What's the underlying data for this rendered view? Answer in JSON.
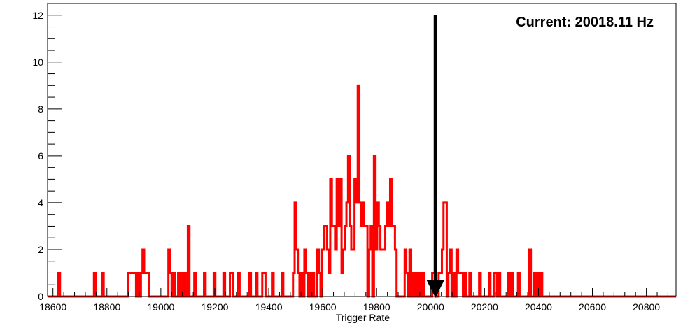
{
  "chart_data": {
    "type": "histogram",
    "title": "",
    "xlabel": "Trigger Rate",
    "ylabel": "",
    "xlim": [
      18580,
      20910
    ],
    "ylim": [
      0,
      12.5
    ],
    "x_ticks": [
      18600,
      18800,
      19000,
      19200,
      19400,
      19600,
      19800,
      20000,
      20200,
      20400,
      20600,
      20800
    ],
    "y_ticks": [
      0,
      2,
      4,
      6,
      8,
      10,
      12
    ],
    "grid": false,
    "bin_width": 6,
    "series_color": "#ff0000",
    "annotation": {
      "text": "Current: 20018.11 Hz",
      "marker_x": 20018.11,
      "marker_y_top": 12,
      "marker_color": "#000000"
    },
    "bars": [
      [
        18620,
        1
      ],
      [
        18752,
        1
      ],
      [
        18782,
        1
      ],
      [
        18878,
        1
      ],
      [
        18884,
        1
      ],
      [
        18890,
        1
      ],
      [
        18896,
        1
      ],
      [
        18902,
        1
      ],
      [
        18914,
        1
      ],
      [
        18926,
        1
      ],
      [
        18932,
        2
      ],
      [
        18938,
        1
      ],
      [
        18944,
        1
      ],
      [
        18950,
        1
      ],
      [
        19028,
        2
      ],
      [
        19034,
        1
      ],
      [
        19046,
        1
      ],
      [
        19064,
        1
      ],
      [
        19076,
        1
      ],
      [
        19088,
        1
      ],
      [
        19100,
        3
      ],
      [
        19124,
        1
      ],
      [
        19160,
        1
      ],
      [
        19196,
        1
      ],
      [
        19232,
        1
      ],
      [
        19256,
        1
      ],
      [
        19262,
        1
      ],
      [
        19286,
        1
      ],
      [
        19328,
        1
      ],
      [
        19352,
        1
      ],
      [
        19376,
        1
      ],
      [
        19382,
        1
      ],
      [
        19412,
        1
      ],
      [
        19448,
        1
      ],
      [
        19490,
        1
      ],
      [
        19496,
        4
      ],
      [
        19502,
        2
      ],
      [
        19508,
        1
      ],
      [
        19520,
        1
      ],
      [
        19532,
        2
      ],
      [
        19538,
        1
      ],
      [
        19550,
        1
      ],
      [
        19562,
        1
      ],
      [
        19580,
        2
      ],
      [
        19586,
        1
      ],
      [
        19598,
        2
      ],
      [
        19604,
        3
      ],
      [
        19610,
        3
      ],
      [
        19616,
        2
      ],
      [
        19622,
        1
      ],
      [
        19628,
        5
      ],
      [
        19634,
        3
      ],
      [
        19640,
        3
      ],
      [
        19646,
        2
      ],
      [
        19652,
        5
      ],
      [
        19658,
        3
      ],
      [
        19664,
        5
      ],
      [
        19670,
        1
      ],
      [
        19676,
        2
      ],
      [
        19682,
        3
      ],
      [
        19688,
        4
      ],
      [
        19694,
        6
      ],
      [
        19700,
        3
      ],
      [
        19706,
        2
      ],
      [
        19712,
        2
      ],
      [
        19718,
        5
      ],
      [
        19724,
        4
      ],
      [
        19730,
        9
      ],
      [
        19736,
        4
      ],
      [
        19742,
        3
      ],
      [
        19748,
        4
      ],
      [
        19754,
        3
      ],
      [
        19760,
        3
      ],
      [
        19772,
        2
      ],
      [
        19778,
        3
      ],
      [
        19790,
        6
      ],
      [
        19796,
        2
      ],
      [
        19802,
        4
      ],
      [
        19808,
        3
      ],
      [
        19814,
        2
      ],
      [
        19820,
        2
      ],
      [
        19826,
        2
      ],
      [
        19832,
        3
      ],
      [
        19838,
        4
      ],
      [
        19844,
        3
      ],
      [
        19850,
        5
      ],
      [
        19856,
        3
      ],
      [
        19862,
        3
      ],
      [
        19868,
        2
      ],
      [
        19904,
        2
      ],
      [
        19910,
        1
      ],
      [
        19922,
        2
      ],
      [
        19934,
        1
      ],
      [
        19946,
        1
      ],
      [
        19958,
        1
      ],
      [
        19970,
        1
      ],
      [
        20006,
        1
      ],
      [
        20012,
        1
      ],
      [
        20030,
        1
      ],
      [
        20036,
        1
      ],
      [
        20042,
        2
      ],
      [
        20048,
        4
      ],
      [
        20054,
        4
      ],
      [
        20066,
        1
      ],
      [
        20072,
        2
      ],
      [
        20084,
        1
      ],
      [
        20096,
        2
      ],
      [
        20102,
        1
      ],
      [
        20108,
        1
      ],
      [
        20114,
        1
      ],
      [
        20126,
        1
      ],
      [
        20144,
        1
      ],
      [
        20180,
        1
      ],
      [
        20216,
        1
      ],
      [
        20234,
        1
      ],
      [
        20240,
        1
      ],
      [
        20252,
        1
      ],
      [
        20288,
        1
      ],
      [
        20300,
        1
      ],
      [
        20324,
        1
      ],
      [
        20366,
        2
      ],
      [
        20384,
        1
      ],
      [
        20396,
        1
      ],
      [
        20408,
        1
      ]
    ]
  }
}
